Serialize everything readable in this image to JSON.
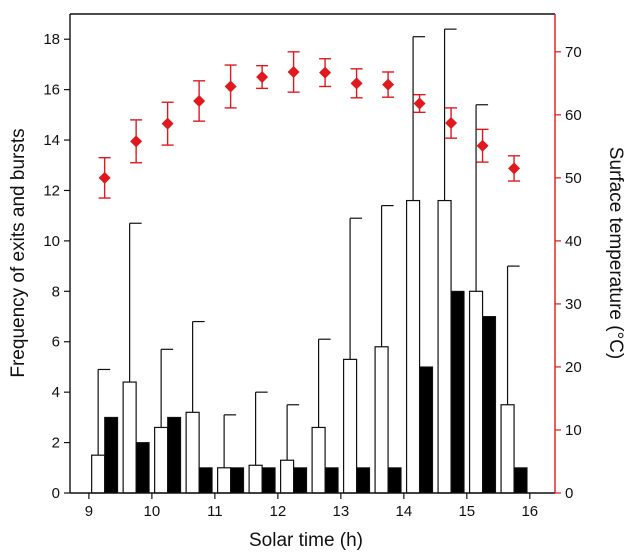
{
  "chart_data": {
    "type": "bar",
    "xlabel": "Solar time (h)",
    "ylabel": "Frequency of exits and bursts",
    "y2label": "Surface temperature (°C)",
    "xlim": [
      8.7,
      16.4
    ],
    "ylim": [
      0,
      19
    ],
    "y2lim": [
      0,
      76
    ],
    "xticks": [
      9,
      10,
      11,
      12,
      13,
      14,
      15,
      16
    ],
    "yticks": [
      0,
      2,
      4,
      6,
      8,
      10,
      12,
      14,
      16,
      18
    ],
    "y2ticks": [
      0,
      10,
      20,
      30,
      40,
      50,
      60,
      70
    ],
    "colors": {
      "open_bar_fill": "#ffffff",
      "solid_bar_fill": "#000000",
      "temperature": "#e0191e",
      "temperature_axis": "#e0191e",
      "axis": "#111111"
    },
    "x": [
      9.25,
      9.75,
      10.25,
      10.75,
      11.25,
      11.75,
      12.25,
      12.75,
      13.25,
      13.75,
      14.25,
      14.75,
      15.25,
      15.75
    ],
    "series": [
      {
        "style": "open-bar",
        "values": [
          1.5,
          4.4,
          2.6,
          3.2,
          1.0,
          1.1,
          1.3,
          2.6,
          5.3,
          5.8,
          11.6,
          11.6,
          8.0,
          3.5
        ],
        "upper": [
          4.9,
          10.7,
          5.7,
          6.8,
          3.1,
          4.0,
          3.5,
          6.1,
          10.9,
          11.4,
          18.1,
          18.4,
          15.4,
          9.0
        ]
      },
      {
        "style": "solid-bar",
        "values": [
          3.0,
          2.0,
          3.0,
          1.0,
          1.0,
          1.0,
          1.0,
          1.0,
          1.0,
          1.0,
          5.0,
          8.0,
          7.0,
          1.0
        ]
      },
      {
        "style": "marker-errorbar",
        "axis": "right",
        "values": [
          50.0,
          55.8,
          58.6,
          62.2,
          64.5,
          66.0,
          66.8,
          66.7,
          65.0,
          64.8,
          61.8,
          58.7,
          55.1,
          51.5
        ],
        "error": [
          3.2,
          3.4,
          3.4,
          3.2,
          3.4,
          1.8,
          3.2,
          2.2,
          2.3,
          2.0,
          1.4,
          2.4,
          2.6,
          2.0
        ]
      }
    ]
  }
}
